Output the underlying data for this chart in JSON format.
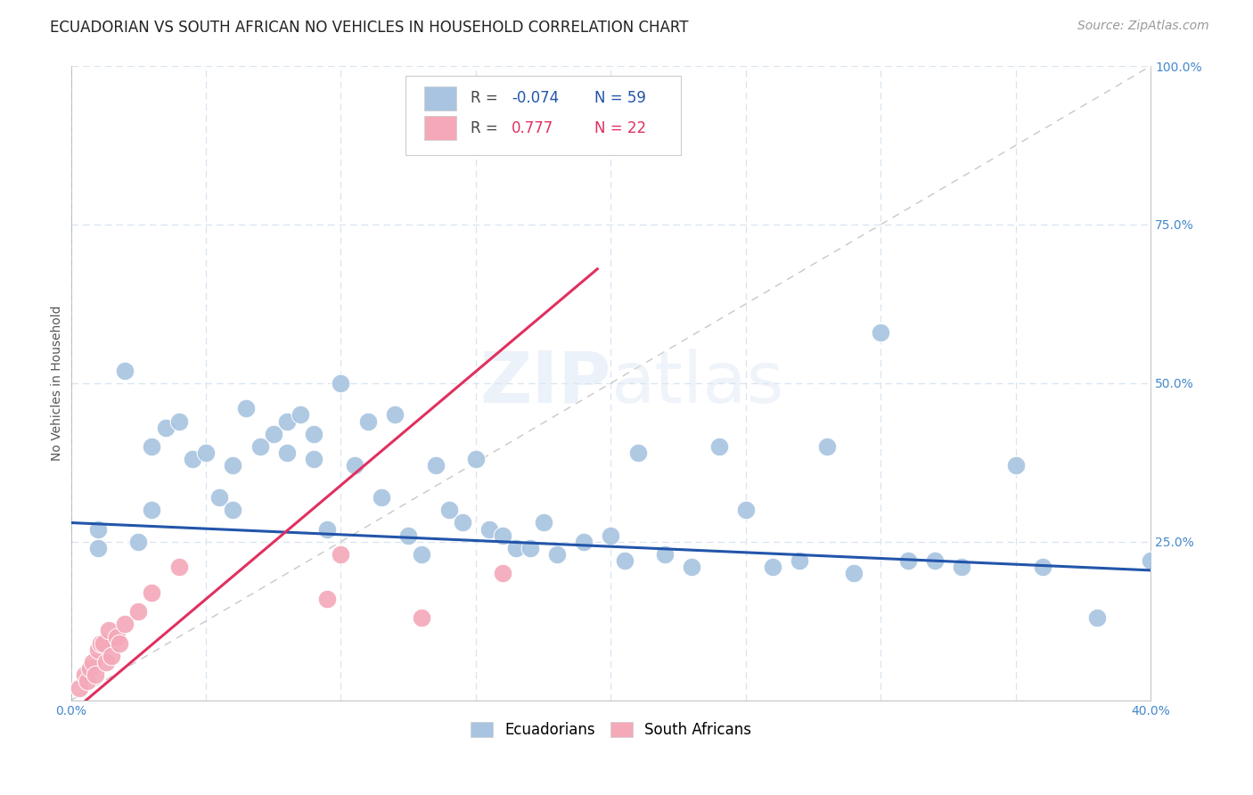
{
  "title": "ECUADORIAN VS SOUTH AFRICAN NO VEHICLES IN HOUSEHOLD CORRELATION CHART",
  "source": "Source: ZipAtlas.com",
  "ylabel_label": "No Vehicles in Household",
  "xlim": [
    0.0,
    0.4
  ],
  "ylim": [
    0.0,
    1.0
  ],
  "x_ticks": [
    0.0,
    0.05,
    0.1,
    0.15,
    0.2,
    0.25,
    0.3,
    0.35,
    0.4
  ],
  "x_tick_labels": [
    "0.0%",
    "",
    "",
    "",
    "",
    "",
    "",
    "",
    "40.0%"
  ],
  "y_ticks": [
    0.0,
    0.25,
    0.5,
    0.75,
    1.0
  ],
  "y_tick_labels": [
    "",
    "25.0%",
    "50.0%",
    "75.0%",
    "100.0%"
  ],
  "blue_r": "-0.074",
  "blue_n": "59",
  "pink_r": "0.777",
  "pink_n": "22",
  "legend_ecuadorians": "Ecuadorians",
  "legend_south_africans": "South Africans",
  "blue_color": "#a8c4e0",
  "pink_color": "#f4a8b8",
  "blue_line_color": "#2255aa",
  "pink_line_color": "#e03060",
  "ref_line_color": "#c8c8c8",
  "grid_color": "#d8e4f0",
  "watermark": "ZIPatlas",
  "blue_scatter_x": [
    0.01,
    0.01,
    0.02,
    0.025,
    0.03,
    0.03,
    0.035,
    0.04,
    0.045,
    0.05,
    0.055,
    0.06,
    0.06,
    0.065,
    0.07,
    0.075,
    0.08,
    0.08,
    0.085,
    0.09,
    0.09,
    0.095,
    0.1,
    0.105,
    0.11,
    0.115,
    0.12,
    0.125,
    0.13,
    0.135,
    0.14,
    0.145,
    0.15,
    0.155,
    0.16,
    0.165,
    0.17,
    0.175,
    0.18,
    0.19,
    0.2,
    0.205,
    0.21,
    0.22,
    0.23,
    0.24,
    0.25,
    0.26,
    0.27,
    0.28,
    0.29,
    0.3,
    0.31,
    0.32,
    0.33,
    0.35,
    0.36,
    0.38,
    0.4
  ],
  "blue_scatter_y": [
    0.27,
    0.24,
    0.52,
    0.25,
    0.4,
    0.3,
    0.43,
    0.44,
    0.38,
    0.39,
    0.32,
    0.37,
    0.3,
    0.46,
    0.4,
    0.42,
    0.44,
    0.39,
    0.45,
    0.42,
    0.38,
    0.27,
    0.5,
    0.37,
    0.44,
    0.32,
    0.45,
    0.26,
    0.23,
    0.37,
    0.3,
    0.28,
    0.38,
    0.27,
    0.26,
    0.24,
    0.24,
    0.28,
    0.23,
    0.25,
    0.26,
    0.22,
    0.39,
    0.23,
    0.21,
    0.4,
    0.3,
    0.21,
    0.22,
    0.4,
    0.2,
    0.58,
    0.22,
    0.22,
    0.21,
    0.37,
    0.21,
    0.13,
    0.22
  ],
  "pink_scatter_x": [
    0.003,
    0.005,
    0.006,
    0.007,
    0.008,
    0.009,
    0.01,
    0.011,
    0.012,
    0.013,
    0.014,
    0.015,
    0.017,
    0.018,
    0.02,
    0.025,
    0.03,
    0.04,
    0.095,
    0.1,
    0.13,
    0.16
  ],
  "pink_scatter_y": [
    0.02,
    0.04,
    0.03,
    0.05,
    0.06,
    0.04,
    0.08,
    0.09,
    0.09,
    0.06,
    0.11,
    0.07,
    0.1,
    0.09,
    0.12,
    0.14,
    0.17,
    0.21,
    0.16,
    0.23,
    0.13,
    0.2
  ],
  "blue_line_x0": 0.0,
  "blue_line_x1": 0.4,
  "blue_line_y0": 0.28,
  "blue_line_y1": 0.205,
  "pink_line_x0": 0.0,
  "pink_line_x1": 0.195,
  "pink_line_y0": -0.02,
  "pink_line_y1": 0.68,
  "title_fontsize": 12,
  "axis_label_fontsize": 10,
  "tick_fontsize": 10,
  "source_fontsize": 10
}
